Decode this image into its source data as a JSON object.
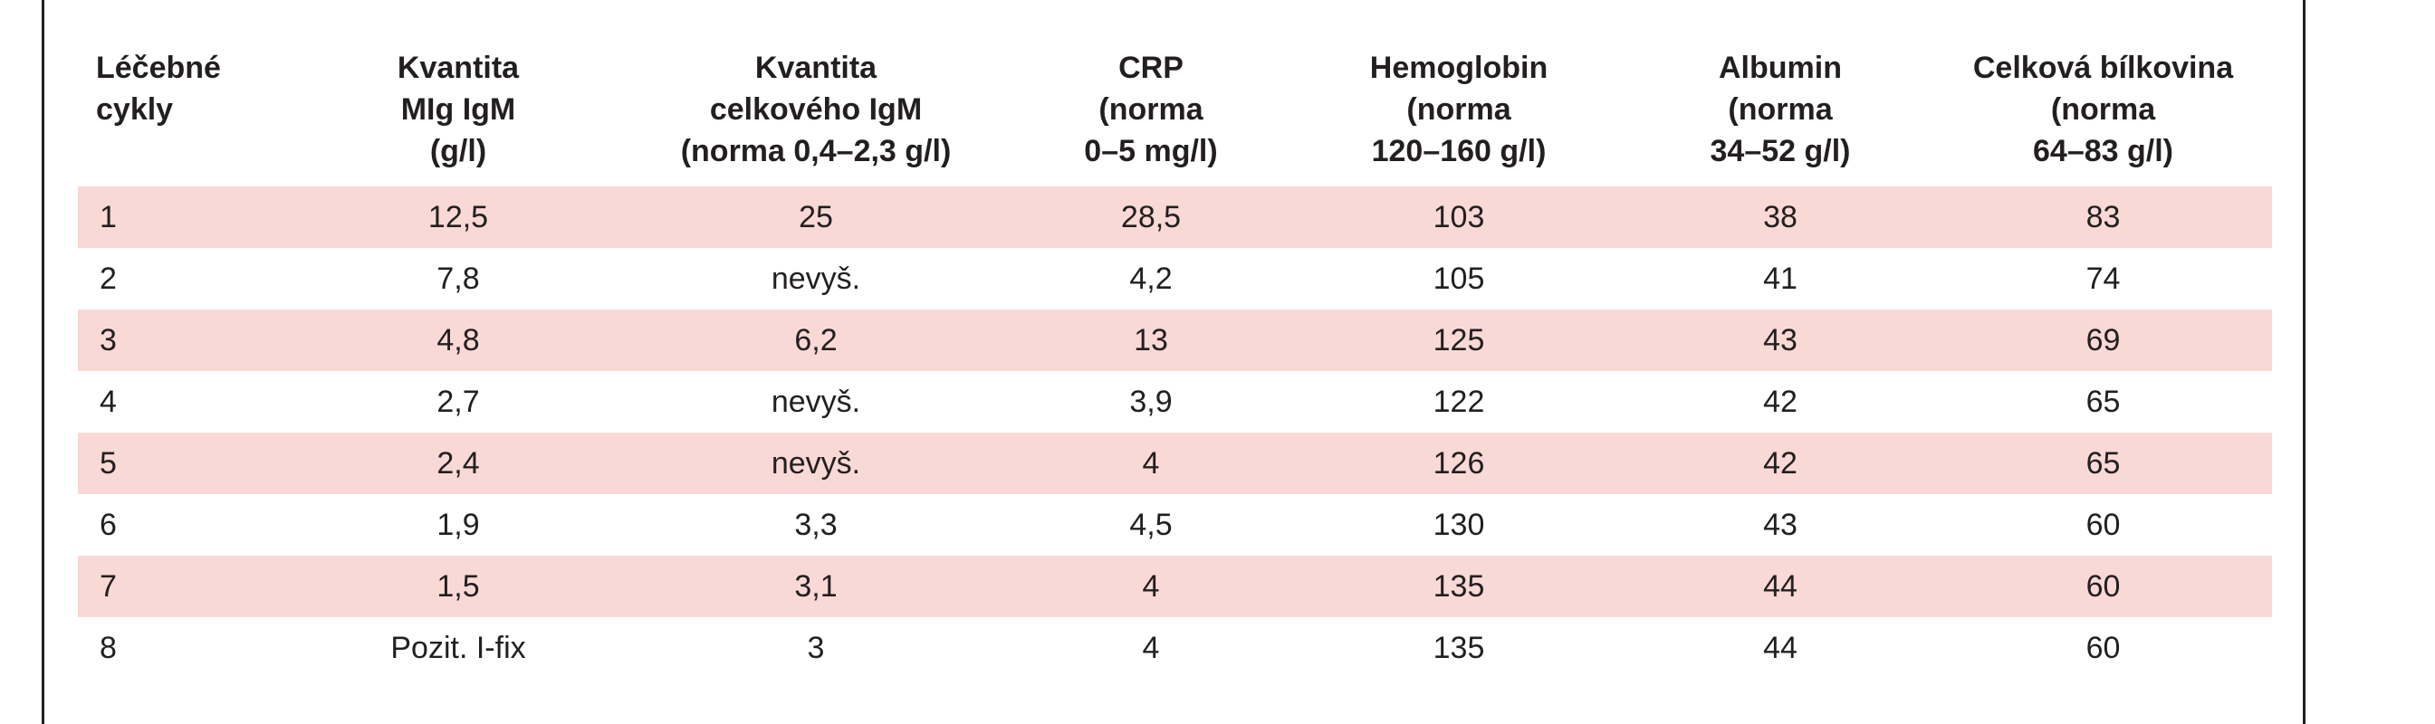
{
  "table": {
    "headers": [
      [
        "Léčebné",
        "cykly"
      ],
      [
        "Kvantita",
        "MIg IgM",
        "(g/l)"
      ],
      [
        "Kvantita",
        "celkového IgM",
        "(norma 0,4–2,3 g/l)"
      ],
      [
        "CRP",
        "(norma",
        "0–5 mg/l)"
      ],
      [
        "Hemoglobin",
        "(norma",
        "120–160 g/l)"
      ],
      [
        "Albumin",
        "(norma",
        "34–52 g/l)"
      ],
      [
        "Celková bílkovina",
        "(norma",
        "64–83 g/l)"
      ]
    ],
    "rows": [
      [
        "1",
        "12,5",
        "25",
        "28,5",
        "103",
        "38",
        "83"
      ],
      [
        "2",
        "7,8",
        "nevyš.",
        "4,2",
        "105",
        "41",
        "74"
      ],
      [
        "3",
        "4,8",
        "6,2",
        "13",
        "125",
        "43",
        "69"
      ],
      [
        "4",
        "2,7",
        "nevyš.",
        "3,9",
        "122",
        "42",
        "65"
      ],
      [
        "5",
        "2,4",
        "nevyš.",
        "4",
        "126",
        "42",
        "65"
      ],
      [
        "6",
        "1,9",
        "3,3",
        "4,5",
        "130",
        "43",
        "60"
      ],
      [
        "7",
        "1,5",
        "3,1",
        "4",
        "135",
        "44",
        "60"
      ],
      [
        "8",
        "Pozit. I-fix",
        "3",
        "4",
        "135",
        "44",
        "60"
      ]
    ],
    "row_shade_color": "#f9d9d5"
  }
}
